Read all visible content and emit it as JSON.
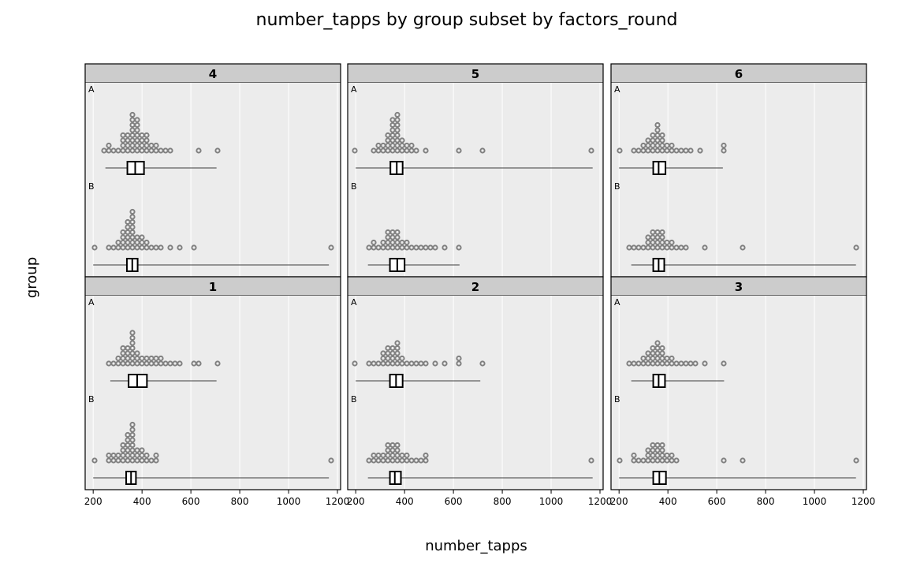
{
  "chart_data": {
    "type": "dotplot-boxplot",
    "title": "number_tapps by group subset by factors_round",
    "xlabel": "number_tapps",
    "ylabel": "group",
    "xlim": [
      180,
      1200
    ],
    "x_ticks": [
      200,
      400,
      600,
      800,
      1000,
      1200
    ],
    "groups": [
      "A",
      "B"
    ],
    "grid": true,
    "panels": [
      {
        "strip": "4",
        "series": [
          {
            "group": "A",
            "values": [
              250,
              262,
              270,
              290,
              305,
              315,
              320,
              325,
              330,
              335,
              340,
              345,
              350,
              352,
              355,
              358,
              360,
              362,
              365,
              368,
              370,
              372,
              375,
              378,
              380,
              382,
              385,
              388,
              390,
              395,
              400,
              405,
              410,
              415,
              420,
              425,
              430,
              440,
              450,
              460,
              480,
              500,
              520,
              625,
              705
            ],
            "box": {
              "min": 250,
              "q1": 340,
              "median": 372,
              "q3": 408,
              "max": 705
            }
          },
          {
            "group": "B",
            "values": [
              200,
              270,
              285,
              300,
              310,
              315,
              320,
              325,
              330,
              335,
              340,
              342,
              345,
              348,
              350,
              352,
              355,
              358,
              360,
              362,
              365,
              368,
              370,
              375,
              380,
              385,
              390,
              395,
              400,
              410,
              420,
              435,
              450,
              470,
              520,
              555,
              620,
              1165
            ],
            "box": {
              "min": 200,
              "q1": 338,
              "median": 360,
              "q3": 382,
              "max": 1165
            }
          }
        ]
      },
      {
        "strip": "5",
        "series": [
          {
            "group": "A",
            "values": [
              200,
              275,
              290,
              300,
              310,
              318,
              325,
              330,
              335,
              340,
              345,
              348,
              350,
              352,
              355,
              358,
              360,
              362,
              365,
              368,
              370,
              372,
              375,
              378,
              380,
              385,
              390,
              395,
              400,
              410,
              420,
              430,
              440,
              495,
              625,
              710,
              1170
            ],
            "box": {
              "min": 200,
              "q1": 342,
              "median": 368,
              "q3": 392,
              "max": 1170
            }
          },
          {
            "group": "B",
            "values": [
              250,
              265,
              280,
              300,
              310,
              320,
              325,
              330,
              335,
              340,
              345,
              350,
              355,
              360,
              365,
              370,
              375,
              380,
              385,
              390,
              400,
              410,
              420,
              440,
              460,
              480,
              500,
              525,
              560,
              625
            ],
            "box": {
              "min": 250,
              "q1": 340,
              "median": 370,
              "q3": 400,
              "max": 625
            }
          }
        ]
      },
      {
        "strip": "6",
        "series": [
          {
            "group": "A",
            "values": [
              200,
              265,
              275,
              290,
              300,
              310,
              318,
              325,
              330,
              335,
              340,
              345,
              350,
              352,
              355,
              358,
              360,
              365,
              370,
              375,
              380,
              385,
              390,
              400,
              410,
              420,
              440,
              460,
              480,
              500,
              530,
              620,
              625
            ],
            "box": {
              "min": 200,
              "q1": 340,
              "median": 362,
              "q3": 390,
              "max": 625
            }
          },
          {
            "group": "B",
            "values": [
              250,
              265,
              280,
              300,
              310,
              320,
              325,
              330,
              335,
              340,
              345,
              350,
              355,
              360,
              365,
              370,
              375,
              380,
              385,
              390,
              400,
              410,
              420,
              440,
              460,
              480,
              555,
              710,
              1170
            ],
            "box": {
              "min": 250,
              "q1": 340,
              "median": 362,
              "q3": 385,
              "max": 1170
            }
          }
        ]
      },
      {
        "strip": "1",
        "series": [
          {
            "group": "A",
            "values": [
              270,
              285,
              300,
              310,
              315,
              320,
              325,
              330,
              335,
              340,
              345,
              350,
              355,
              358,
              360,
              362,
              365,
              368,
              370,
              375,
              380,
              385,
              390,
              400,
              410,
              420,
              430,
              440,
              450,
              460,
              470,
              480,
              500,
              520,
              540,
              555,
              620,
              625,
              705
            ],
            "box": {
              "min": 270,
              "q1": 345,
              "median": 380,
              "q3": 420,
              "max": 705
            }
          },
          {
            "group": "B",
            "values": [
              200,
              255,
              265,
              275,
              290,
              300,
              310,
              315,
              320,
              325,
              330,
              335,
              340,
              342,
              345,
              348,
              350,
              352,
              355,
              358,
              360,
              362,
              365,
              368,
              370,
              375,
              380,
              385,
              390,
              395,
              400,
              410,
              420,
              440,
              455,
              465,
              1165
            ],
            "box": {
              "min": 200,
              "q1": 335,
              "median": 355,
              "q3": 375,
              "max": 1165
            }
          }
        ]
      },
      {
        "strip": "2",
        "series": [
          {
            "group": "A",
            "values": [
              200,
              260,
              275,
              295,
              305,
              312,
              318,
              325,
              330,
              335,
              340,
              345,
              350,
              355,
              360,
              362,
              365,
              370,
              375,
              380,
              385,
              390,
              400,
              420,
              440,
              460,
              480,
              525,
              560,
              620,
              625,
              710
            ],
            "box": {
              "min": 200,
              "q1": 340,
              "median": 365,
              "q3": 392,
              "max": 710
            }
          },
          {
            "group": "B",
            "values": [
              250,
              265,
              280,
              290,
              300,
              310,
              318,
              325,
              330,
              335,
              340,
              345,
              350,
              355,
              360,
              365,
              370,
              375,
              380,
              385,
              390,
              400,
              410,
              420,
              440,
              460,
              480,
              495,
              1170
            ],
            "box": {
              "min": 250,
              "q1": 340,
              "median": 360,
              "q3": 385,
              "max": 1170
            }
          }
        ]
      },
      {
        "strip": "3",
        "series": [
          {
            "group": "A",
            "values": [
              250,
              262,
              275,
              290,
              300,
              310,
              318,
              325,
              330,
              335,
              340,
              345,
              350,
              355,
              360,
              362,
              365,
              370,
              375,
              380,
              385,
              390,
              400,
              410,
              420,
              440,
              460,
              480,
              500,
              520,
              555,
              630
            ],
            "box": {
              "min": 250,
              "q1": 340,
              "median": 362,
              "q3": 388,
              "max": 630
            }
          },
          {
            "group": "B",
            "values": [
              200,
              255,
              270,
              285,
              300,
              310,
              320,
              325,
              330,
              335,
              340,
              345,
              350,
              355,
              360,
              365,
              370,
              375,
              380,
              385,
              390,
              400,
              410,
              420,
              440,
              620,
              710,
              1170
            ],
            "box": {
              "min": 200,
              "q1": 340,
              "median": 365,
              "q3": 392,
              "max": 1170
            }
          }
        ]
      }
    ]
  },
  "colors": {
    "panel_bg": "#ececec",
    "strip_bg": "#cccccc",
    "grid": "#ffffff",
    "point": "#808080",
    "box": "#000000"
  }
}
